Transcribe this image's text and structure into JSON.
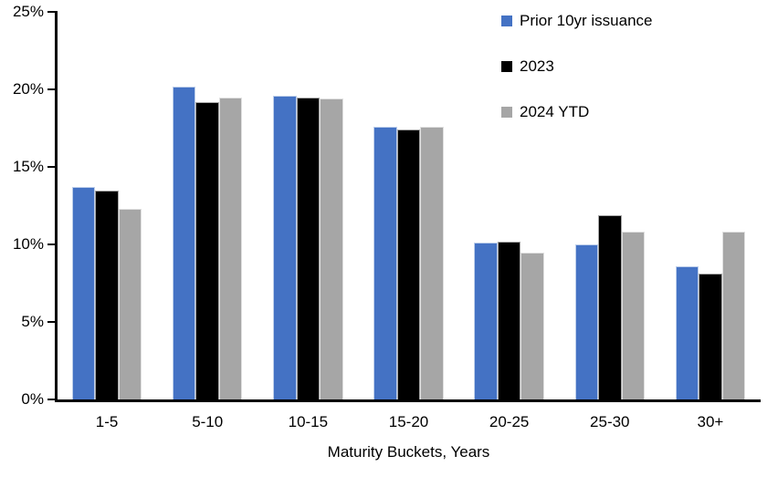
{
  "chart_data": {
    "type": "bar",
    "title": "",
    "categories": [
      "1-5",
      "5-10",
      "10-15",
      "15-20",
      "20-25",
      "25-30",
      "30+"
    ],
    "series": [
      {
        "name": "Prior 10yr issuance",
        "color": "#4472C4",
        "values": [
          13.7,
          20.2,
          19.6,
          17.6,
          10.1,
          10.0,
          8.6
        ]
      },
      {
        "name": "2023",
        "color": "#000000",
        "values": [
          13.5,
          19.2,
          19.5,
          17.4,
          10.2,
          11.9,
          8.1
        ]
      },
      {
        "name": "2024 YTD",
        "color": "#A6A6A6",
        "values": [
          12.3,
          19.5,
          19.4,
          17.6,
          9.5,
          10.8,
          10.8
        ]
      }
    ],
    "xlabel": "Maturity Buckets, Years",
    "ylabel": "",
    "ylim": [
      0,
      25
    ],
    "ytick_step": 5,
    "yticks": [
      "0%",
      "5%",
      "10%",
      "15%",
      "20%",
      "25%"
    ],
    "grid": false,
    "legend_position": "top-right",
    "axis_color": "#000000",
    "background_color": "#FFFFFF"
  }
}
